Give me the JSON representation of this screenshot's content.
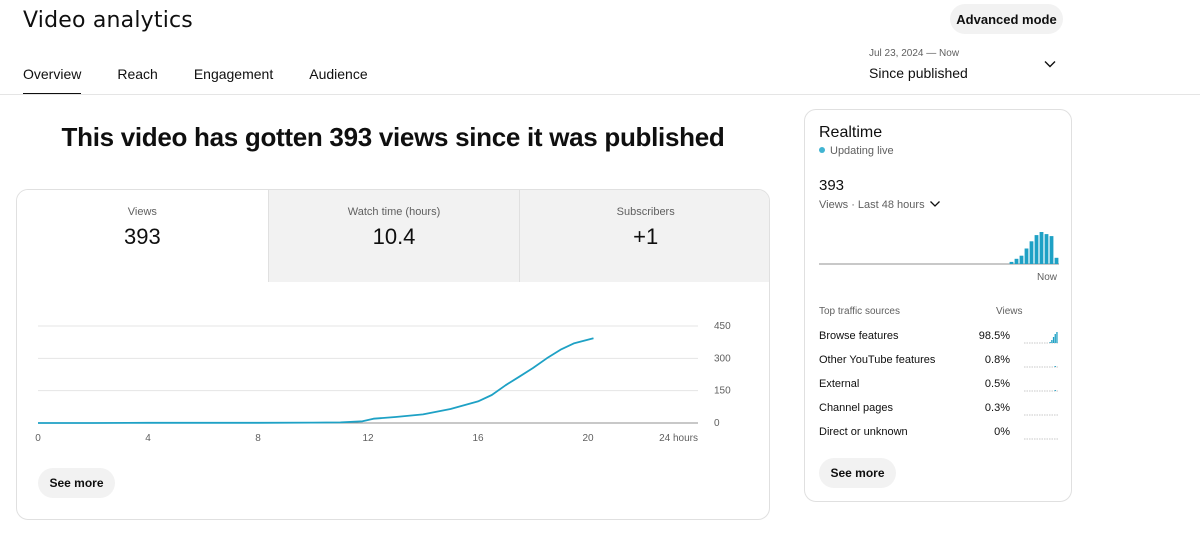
{
  "header": {
    "title": "Video analytics",
    "advanced_mode": "Advanced mode",
    "tabs": [
      {
        "label": "Overview",
        "active": true
      },
      {
        "label": "Reach",
        "active": false
      },
      {
        "label": "Engagement",
        "active": false
      },
      {
        "label": "Audience",
        "active": false
      }
    ],
    "date_range": {
      "range": "Jul 23, 2024 — Now",
      "label": "Since published"
    }
  },
  "main": {
    "headline": "This video has gotten 393 views since it was published",
    "metrics": [
      {
        "label": "Views",
        "value": "393",
        "selected": true
      },
      {
        "label": "Watch time (hours)",
        "value": "10.4",
        "selected": false
      },
      {
        "label": "Subscribers",
        "value": "+1",
        "selected": false
      }
    ],
    "see_more": "See more"
  },
  "chart_data": {
    "type": "line",
    "x_ticks": [
      "0",
      "4",
      "8",
      "12",
      "16",
      "20",
      "24 hours"
    ],
    "y_ticks": [
      "0",
      "150",
      "300",
      "450"
    ],
    "xlim": [
      0,
      24
    ],
    "ylim": [
      0,
      450
    ],
    "grid": true,
    "series": [
      {
        "color": "#1ea1c5",
        "points": [
          [
            0,
            0
          ],
          [
            2,
            0
          ],
          [
            4,
            1
          ],
          [
            6,
            1
          ],
          [
            8,
            1
          ],
          [
            10,
            2
          ],
          [
            11,
            3
          ],
          [
            11.8,
            8
          ],
          [
            12.2,
            20
          ],
          [
            13,
            28
          ],
          [
            14,
            40
          ],
          [
            15,
            65
          ],
          [
            16,
            100
          ],
          [
            16.5,
            130
          ],
          [
            17,
            175
          ],
          [
            17.5,
            215
          ],
          [
            18,
            255
          ],
          [
            18.5,
            300
          ],
          [
            19,
            340
          ],
          [
            19.5,
            370
          ],
          [
            20.2,
            393
          ]
        ]
      }
    ]
  },
  "realtime": {
    "title": "Realtime",
    "status": "Updating live",
    "count": "393",
    "period": "Views · Last 48 hours",
    "now_label": "Now",
    "accent": "#1ea1c5",
    "bars": [
      0,
      0,
      0,
      0,
      0,
      0,
      0,
      0,
      0,
      0,
      0,
      0,
      0,
      0,
      0,
      0,
      0,
      0,
      0,
      0,
      0,
      0,
      0,
      0,
      0,
      0,
      0,
      0,
      0,
      0,
      0,
      0,
      0,
      0,
      0,
      0,
      0,
      0,
      2,
      5,
      8,
      15,
      22,
      28,
      31,
      29,
      27,
      6
    ],
    "sources_header": "Top traffic sources",
    "views_header": "Views",
    "sources": [
      {
        "name": "Browse features",
        "value": "98.5%",
        "spark": [
          0,
          0,
          0,
          0,
          0,
          0,
          0,
          0,
          0,
          0,
          0,
          0,
          0,
          0,
          0,
          1,
          3,
          6,
          9,
          11
        ]
      },
      {
        "name": "Other YouTube features",
        "value": "0.8%",
        "spark": [
          0,
          0,
          0,
          0,
          0,
          0,
          0,
          0,
          0,
          0,
          0,
          0,
          0,
          0,
          0,
          0,
          0,
          0,
          1,
          0
        ]
      },
      {
        "name": "External",
        "value": "0.5%",
        "spark": [
          0,
          0,
          0,
          0,
          0,
          0,
          0,
          0,
          0,
          0,
          0,
          0,
          0,
          0,
          0,
          0,
          0,
          0,
          1,
          0
        ]
      },
      {
        "name": "Channel pages",
        "value": "0.3%",
        "spark": [
          0,
          0,
          0,
          0,
          0,
          0,
          0,
          0,
          0,
          0,
          0,
          0,
          0,
          0,
          0,
          0,
          0,
          0,
          0,
          0
        ]
      },
      {
        "name": "Direct or unknown",
        "value": "0%",
        "spark": [
          0,
          0,
          0,
          0,
          0,
          0,
          0,
          0,
          0,
          0,
          0,
          0,
          0,
          0,
          0,
          0,
          0,
          0,
          0,
          0
        ]
      }
    ],
    "see_more": "See more"
  }
}
